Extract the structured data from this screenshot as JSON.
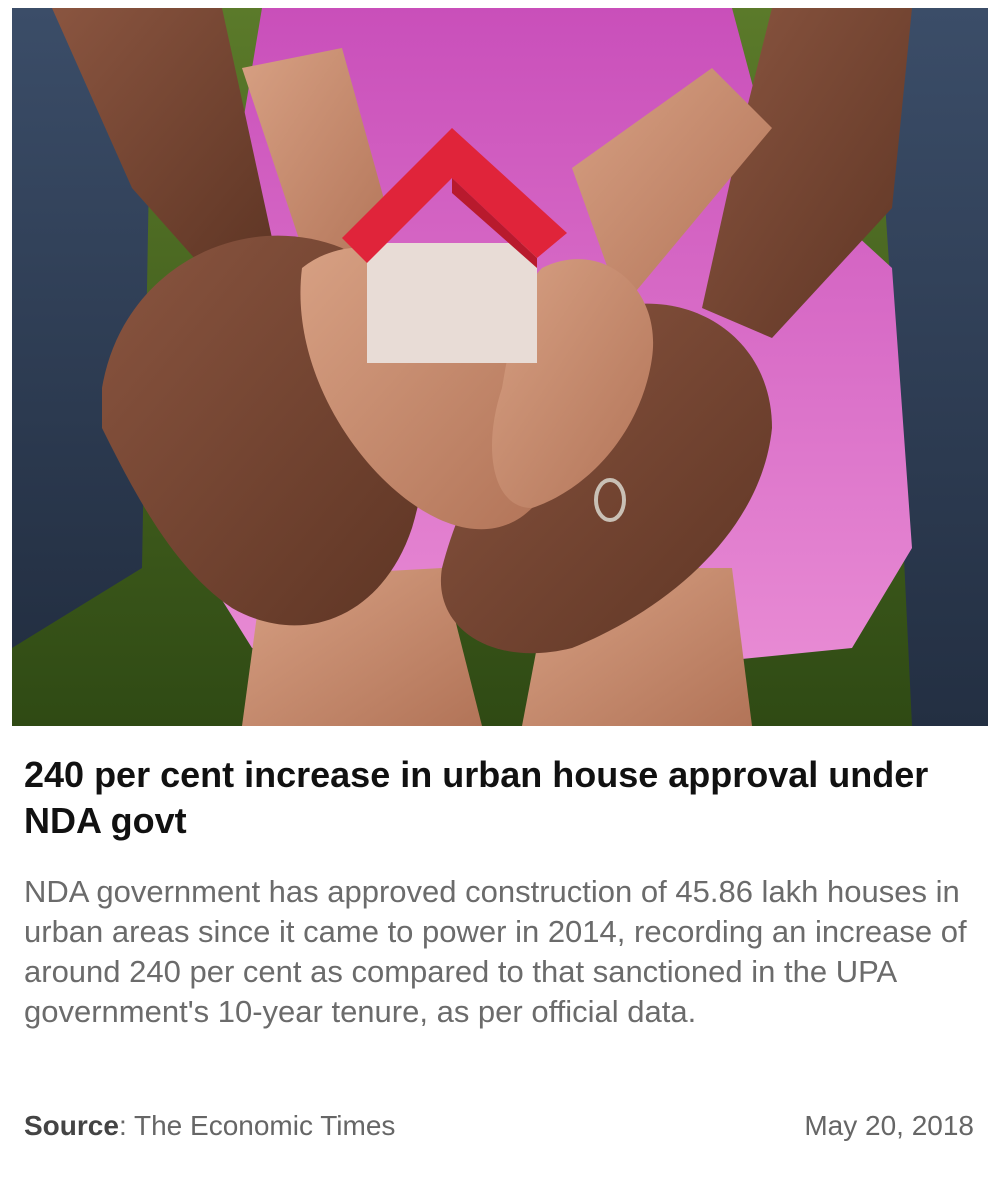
{
  "hero_image": {
    "icon": "hands-holding-house-photo",
    "colors": {
      "grass": "#4a6b22",
      "shirt": "#d66bc8",
      "skin_dark": "#7a4a35",
      "skin_light": "#c98c6e",
      "roof": "#e0243a",
      "house_wall": "#e8dcd6",
      "denim": "#2e3f57"
    }
  },
  "article": {
    "headline": "240 per cent increase in urban house approval under NDA govt",
    "summary": "NDA government has approved construction of 45.86 lakh houses in urban areas since it came to power in 2014, recording an increase of around 240 per cent as compared to that sanctioned in the UPA government's 10-year tenure, as per official data."
  },
  "meta": {
    "source_label": "Source",
    "source_separator": ": ",
    "source_name": "The Economic Times",
    "date": "May 20, 2018"
  }
}
